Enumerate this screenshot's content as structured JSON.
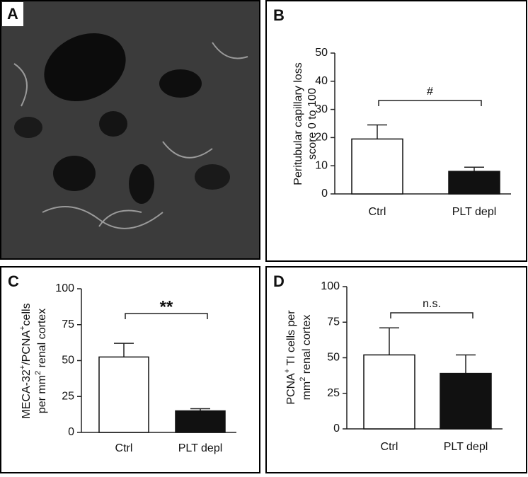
{
  "panel_a": {
    "label": "A"
  },
  "chart_data": [
    {
      "type": "bar",
      "panel_label": "B",
      "ylabel": [
        [
          {
            "text": "Peritubular capillary loss"
          }
        ],
        [
          {
            "text": "score 0 to 100"
          }
        ]
      ],
      "categories": [
        "Ctrl",
        "PLT depl"
      ],
      "values": [
        19.5,
        8
      ],
      "errors": [
        5,
        1.5
      ],
      "colors": [
        "#ffffff",
        "#111111"
      ],
      "annotation": "#",
      "ylim": [
        0,
        50
      ],
      "yticks": [
        0,
        10,
        20,
        30,
        40,
        50
      ]
    },
    {
      "type": "bar",
      "panel_label": "C",
      "ylabel": [
        [
          {
            "text": "MECA-32"
          },
          {
            "text": "+",
            "sup": true
          },
          {
            "text": "/PCNA"
          },
          {
            "text": "+",
            "sup": true
          },
          {
            "text": "cells"
          }
        ],
        [
          {
            "text": "per mm"
          },
          {
            "text": "2",
            "sup": true
          },
          {
            "text": " renal cortex"
          }
        ]
      ],
      "categories": [
        "Ctrl",
        "PLT depl"
      ],
      "values": [
        52.5,
        15
      ],
      "errors": [
        9.5,
        1.5
      ],
      "colors": [
        "#ffffff",
        "#111111"
      ],
      "annotation": "**",
      "ylim": [
        0,
        100
      ],
      "yticks": [
        0,
        25,
        50,
        75,
        100
      ]
    },
    {
      "type": "bar",
      "panel_label": "D",
      "ylabel": [
        [
          {
            "text": "PCNA"
          },
          {
            "text": "+",
            "sup": true
          },
          {
            "text": " TI cells per"
          }
        ],
        [
          {
            "text": "mm"
          },
          {
            "text": "2",
            "sup": true
          },
          {
            "text": " renal cortex"
          }
        ]
      ],
      "categories": [
        "Ctrl",
        "PLT depl"
      ],
      "values": [
        52,
        39
      ],
      "errors": [
        19,
        13
      ],
      "colors": [
        "#ffffff",
        "#111111"
      ],
      "annotation": "n.s.",
      "ylim": [
        0,
        100
      ],
      "yticks": [
        0,
        25,
        50,
        75,
        100
      ]
    }
  ]
}
